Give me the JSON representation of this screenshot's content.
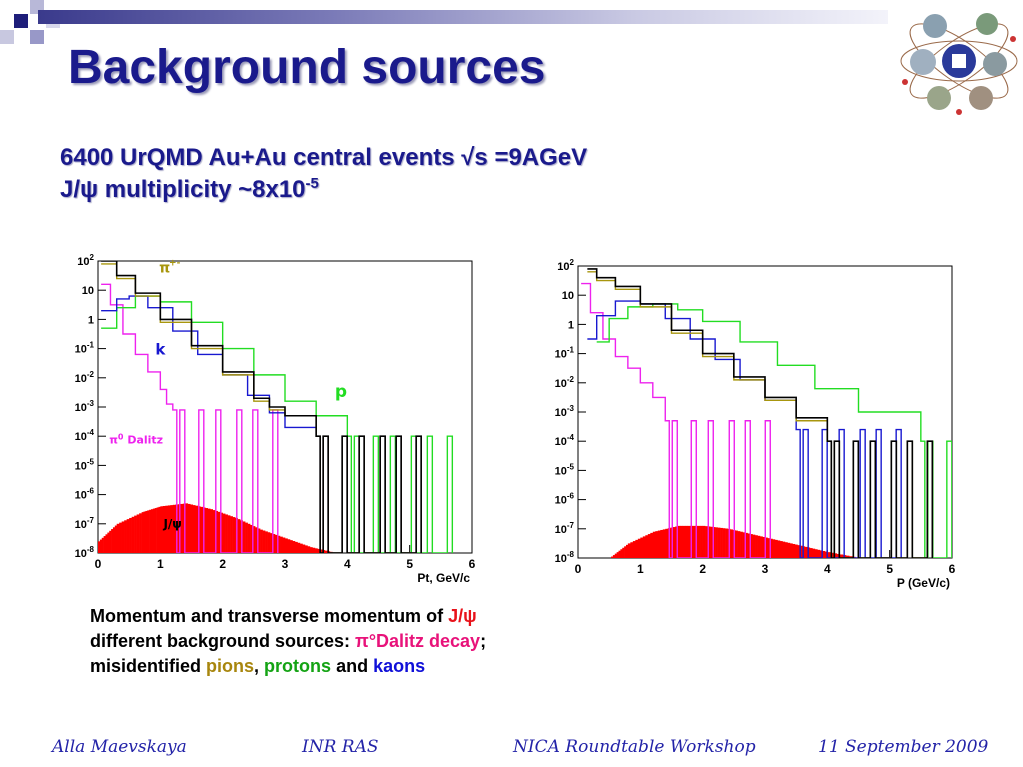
{
  "slide": {
    "title": "Background sources",
    "subtitle_line1": "6400 UrQMD Au+Au central events √s =9AGeV",
    "subtitle_line2_prefix": "J/ψ multiplicity  ~8x10",
    "subtitle_line2_exp": "-5"
  },
  "caption": {
    "line1_text": "Momentum and transverse momentum of ",
    "line1_red": "J/ψ",
    "line2_text": "different background sources: ",
    "line2_mag": "π°Dalitz decay",
    "line2_end": ";",
    "line3_text": "misidentified ",
    "line3_pions": "pions",
    "line3_comma": ",",
    "line3_protons": "protons",
    "line3_and": "and",
    "line3_kaons": "kaons"
  },
  "footer": {
    "author": "Alla Maevskaya",
    "institute": "INR RAS",
    "event": "NICA Roundtable Workshop",
    "date": "11 September 2009"
  },
  "colors": {
    "total": "#000000",
    "pion": "#a8960e",
    "kaon": "#1818d0",
    "proton": "#22dd22",
    "dalitz": "#ee22ee",
    "jpsi": "#ff0000"
  },
  "chart_data": [
    {
      "type": "histogram",
      "xlabel": "Pt, GeV/c",
      "xlim": [
        0,
        6
      ],
      "ylim_log10": [
        -8,
        2
      ],
      "scale": "log-y",
      "x_ticks": [
        "0",
        "1",
        "2",
        "3",
        "4",
        "5",
        "6"
      ],
      "y_tick_exponents": [
        2,
        1,
        0,
        -1,
        -2,
        -3,
        -4,
        -5,
        -6,
        -7,
        -8
      ],
      "annotations": [
        "π+-",
        "k",
        "p",
        "π0 Dalitz",
        "J/ψ"
      ],
      "series": [
        {
          "key": "total",
          "x": [
            0.05,
            0.3,
            0.6,
            1.0,
            1.5,
            2.0,
            2.5,
            2.75,
            3.0,
            3.5
          ],
          "log10y": [
            2.0,
            1.5,
            0.9,
            0.0,
            -0.9,
            -1.8,
            -2.7,
            -3.0,
            -3.3,
            -4.0
          ]
        },
        {
          "key": "pion",
          "x": [
            0.05,
            0.3,
            0.6,
            1.0,
            1.5,
            2.0,
            2.5,
            2.75,
            3.0,
            3.5
          ],
          "log10y": [
            1.9,
            1.4,
            0.8,
            -0.1,
            -1.0,
            -1.9,
            -2.8,
            -3.1,
            -3.3,
            -4.0
          ]
        },
        {
          "key": "kaon",
          "x": [
            0.05,
            0.3,
            0.5,
            0.8,
            1.2,
            1.6,
            2.0,
            2.4,
            2.75,
            3.0,
            3.5
          ],
          "log10y": [
            0.3,
            0.7,
            0.8,
            0.4,
            -0.4,
            -1.2,
            -1.9,
            -2.6,
            -3.2,
            -3.7,
            -4.0
          ]
        },
        {
          "key": "proton",
          "x": [
            0.05,
            0.3,
            0.6,
            1.0,
            1.5,
            2.0,
            2.5,
            3.0,
            3.5,
            4.0
          ],
          "log10y": [
            -0.3,
            0.4,
            0.8,
            0.6,
            -0.1,
            -1.0,
            -1.9,
            -2.8,
            -3.3,
            -4.0
          ]
        },
        {
          "key": "dalitz",
          "x": [
            0.05,
            0.2,
            0.4,
            0.6,
            0.8,
            1.0,
            1.1,
            1.2
          ],
          "log10y": [
            1.2,
            0.5,
            -0.5,
            -1.2,
            -1.8,
            -2.4,
            -2.9,
            -3.1
          ]
        },
        {
          "key": "jpsi",
          "x": [
            0.0,
            0.3,
            0.7,
            1.0,
            1.4,
            1.8,
            2.2,
            2.6,
            3.0,
            3.4,
            3.8
          ],
          "log10y": [
            -7.6,
            -7.0,
            -6.6,
            -6.4,
            -6.3,
            -6.5,
            -6.8,
            -7.2,
            -7.5,
            -7.8,
            -8.0
          ]
        }
      ]
    },
    {
      "type": "histogram",
      "xlabel": "P (GeV/c)",
      "xlim": [
        0,
        6
      ],
      "ylim_log10": [
        -8,
        2
      ],
      "scale": "log-y",
      "x_ticks": [
        "0",
        "1",
        "2",
        "3",
        "4",
        "5",
        "6"
      ],
      "y_tick_exponents": [
        2,
        1,
        0,
        -1,
        -2,
        -3,
        -4,
        -5,
        -6,
        -7,
        -8
      ],
      "series": [
        {
          "key": "total",
          "x": [
            0.15,
            0.3,
            0.6,
            1.0,
            1.5,
            2.0,
            2.5,
            3.0,
            3.5,
            4.0
          ],
          "log10y": [
            1.9,
            1.6,
            1.3,
            0.7,
            -0.2,
            -1.0,
            -1.8,
            -2.5,
            -3.2,
            -4.0
          ]
        },
        {
          "key": "pion",
          "x": [
            0.15,
            0.3,
            0.6,
            1.0,
            1.5,
            2.0,
            2.5,
            3.0,
            3.5,
            4.0
          ],
          "log10y": [
            1.8,
            1.5,
            1.2,
            0.6,
            -0.3,
            -1.1,
            -1.9,
            -2.6,
            -3.3,
            -4.0
          ]
        },
        {
          "key": "kaon",
          "x": [
            0.15,
            0.3,
            0.6,
            1.0,
            1.4,
            1.8,
            2.2,
            2.6,
            3.0,
            3.5
          ],
          "log10y": [
            -0.5,
            0.3,
            0.8,
            0.7,
            0.2,
            -0.5,
            -1.2,
            -1.9,
            -2.6,
            -3.6
          ]
        },
        {
          "key": "proton",
          "x": [
            0.3,
            0.5,
            0.8,
            1.2,
            1.6,
            2.0,
            2.6,
            3.2,
            3.8,
            4.5,
            5.5
          ],
          "log10y": [
            -0.6,
            0.2,
            0.6,
            0.7,
            0.5,
            0.1,
            -0.6,
            -1.4,
            -2.2,
            -3.0,
            -4.0
          ]
        },
        {
          "key": "dalitz",
          "x": [
            0.05,
            0.2,
            0.4,
            0.6,
            0.8,
            1.0,
            1.2,
            1.4
          ],
          "log10y": [
            1.4,
            0.4,
            -0.5,
            -1.1,
            -1.5,
            -2.0,
            -2.5,
            -3.3
          ]
        },
        {
          "key": "jpsi",
          "x": [
            0.5,
            0.8,
            1.2,
            1.6,
            2.0,
            2.4,
            2.8,
            3.2,
            3.6,
            4.0,
            4.5
          ],
          "log10y": [
            -8.0,
            -7.5,
            -7.1,
            -6.9,
            -6.9,
            -7.0,
            -7.2,
            -7.4,
            -7.6,
            -7.8,
            -8.0
          ]
        }
      ]
    }
  ]
}
